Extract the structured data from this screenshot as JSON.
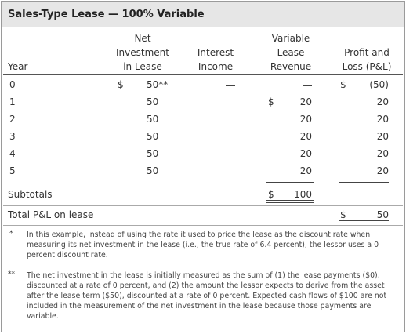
{
  "title": "Sales-Type Lease — 100% Variable",
  "headers": {
    "year": "Year",
    "net_investment": [
      "Net",
      "Investment",
      "in Lease"
    ],
    "interest_income": [
      "Interest",
      "Income"
    ],
    "variable_lease_revenue": [
      "Variable",
      "Lease",
      "Revenue"
    ],
    "profit_and_loss": [
      "Profit and",
      "Loss (P&L)"
    ]
  },
  "rows": [
    {
      "year": "0",
      "ni_dollar": "$",
      "ni": "50**",
      "ii": "—",
      "vlr_dollar": "",
      "vlr": "—",
      "pl_dollar": "$",
      "pl": "(50)"
    },
    {
      "year": "1",
      "ni_dollar": "",
      "ni": "50",
      "ii": "—",
      "vlr_dollar": "$",
      "vlr": "20",
      "pl_dollar": "",
      "pl": "20"
    },
    {
      "year": "2",
      "ni_dollar": "",
      "ni": "50",
      "ii": "—",
      "vlr_dollar": "",
      "vlr": "20",
      "pl_dollar": "",
      "pl": "20"
    },
    {
      "year": "3",
      "ni_dollar": "",
      "ni": "50",
      "ii": "—",
      "vlr_dollar": "",
      "vlr": "20",
      "pl_dollar": "",
      "pl": "20"
    },
    {
      "year": "4",
      "ni_dollar": "",
      "ni": "50",
      "ii": "—",
      "vlr_dollar": "",
      "vlr": "20",
      "pl_dollar": "",
      "pl": "20"
    },
    {
      "year": "5",
      "ni_dollar": "",
      "ni": "50",
      "ii": "—",
      "vlr_dollar": "",
      "vlr": "20",
      "pl_dollar": "",
      "pl": "20"
    }
  ],
  "subtotals": {
    "label": "Subtotals",
    "vlr_dollar": "$",
    "vlr": "100"
  },
  "total": {
    "label": "Total P&L on lease",
    "pl_dollar": "$",
    "pl": "50"
  },
  "notes": [
    {
      "mark": "*",
      "text": "In this example, instead of using the rate it used to price the lease as the discount rate when measuring its net investment in the lease (i.e., the true rate of 6.4 percent), the lessor uses a 0 percent discount rate."
    },
    {
      "mark": "**",
      "text": "The net investment in the lease is initially measured as the sum of (1) the lease payments ($0), discounted at a rate of 0 percent, and (2) the amount the lessor expects to derive from the asset after the lease term ($50), discounted at a rate of 0 percent. Expected cash flows of $100 are not included in the measurement of the net investment in the lease because those payments are variable."
    }
  ]
}
